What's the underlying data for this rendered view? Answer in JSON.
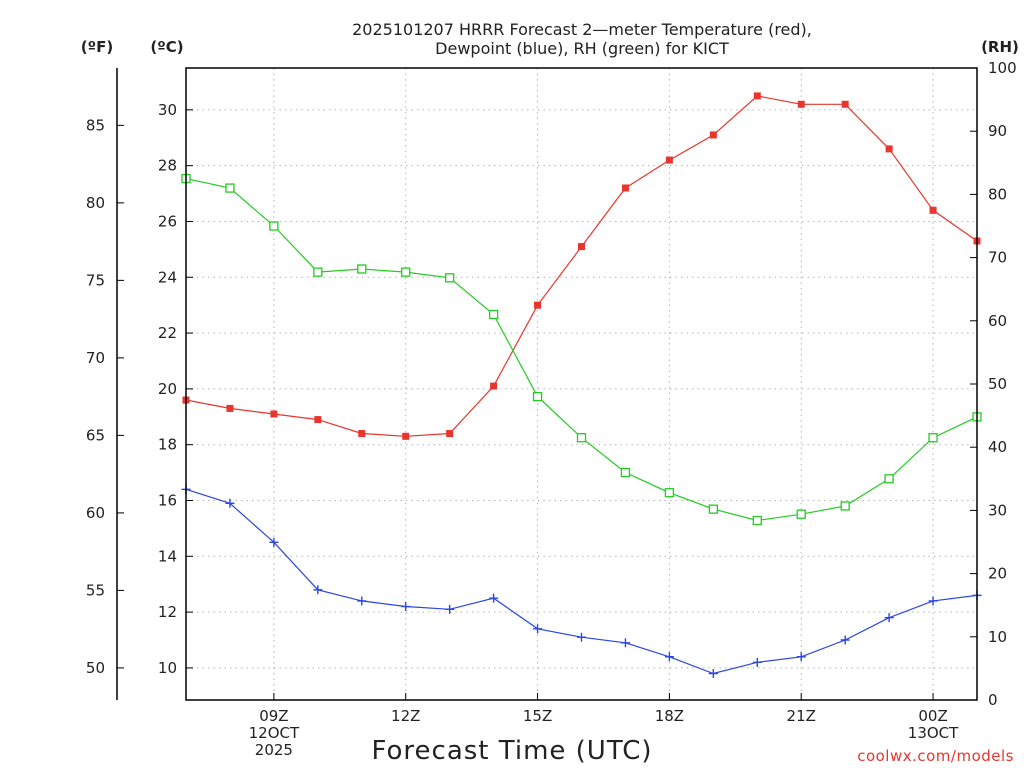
{
  "chart_data": {
    "type": "line",
    "title_lines": [
      "2025101207 HRRR Forecast 2—meter Temperature (red),",
      "Dewpoint (blue), RH (green) for KICT"
    ],
    "xlabel": "Forecast Time (UTC)",
    "credit": "coolwx.com/models",
    "units": {
      "fahrenheit": "(ºF)",
      "celsius": "(ºC)",
      "rh": "(RH)"
    },
    "x_hours": [
      7,
      8,
      9,
      10,
      11,
      12,
      13,
      14,
      15,
      16,
      17,
      18,
      19,
      20,
      21,
      22,
      23,
      24,
      25
    ],
    "xlim": [
      7,
      25
    ],
    "x_ticks": [
      {
        "hour": 9,
        "lines": [
          "09Z",
          "12OCT",
          "2025"
        ]
      },
      {
        "hour": 12,
        "lines": [
          "12Z"
        ]
      },
      {
        "hour": 15,
        "lines": [
          "15Z"
        ]
      },
      {
        "hour": 18,
        "lines": [
          "18Z"
        ]
      },
      {
        "hour": 21,
        "lines": [
          "21Z"
        ]
      },
      {
        "hour": 24,
        "lines": [
          "00Z",
          "13OCT"
        ]
      }
    ],
    "celsius_axis": {
      "ylim": [
        8.85,
        31.5
      ],
      "ticks": [
        10,
        12,
        14,
        16,
        18,
        20,
        22,
        24,
        26,
        28,
        30
      ]
    },
    "fahrenheit_axis": {
      "ticks": [
        50,
        55,
        60,
        65,
        70,
        75,
        80,
        85
      ]
    },
    "rh_axis": {
      "ylim": [
        0,
        100
      ],
      "ticks": [
        0,
        10,
        20,
        30,
        40,
        50,
        60,
        70,
        80,
        90,
        100
      ]
    },
    "series": [
      {
        "name": "Temperature",
        "axis": "celsius",
        "color": "#e8352e",
        "marker": "filled-square",
        "values": [
          19.6,
          19.3,
          19.1,
          18.9,
          18.4,
          18.3,
          18.4,
          20.1,
          23.0,
          25.1,
          27.2,
          28.2,
          29.1,
          30.5,
          30.2,
          30.2,
          28.6,
          26.4,
          25.3
        ]
      },
      {
        "name": "Dewpoint",
        "axis": "celsius",
        "color": "#2b45e8",
        "marker": "plus",
        "values": [
          16.4,
          15.9,
          14.5,
          12.8,
          12.4,
          12.2,
          12.1,
          12.5,
          11.4,
          11.1,
          10.9,
          10.4,
          9.8,
          10.2,
          10.4,
          11.0,
          11.8,
          12.4,
          12.6
        ]
      },
      {
        "name": "RH",
        "axis": "rh",
        "color": "#22cc22",
        "marker": "open-square",
        "values": [
          82.5,
          81.0,
          75.0,
          67.7,
          68.2,
          67.7,
          66.8,
          61.0,
          48.0,
          41.5,
          36.0,
          32.8,
          30.2,
          28.4,
          29.4,
          30.7,
          35.0,
          41.5,
          44.8
        ]
      }
    ]
  }
}
